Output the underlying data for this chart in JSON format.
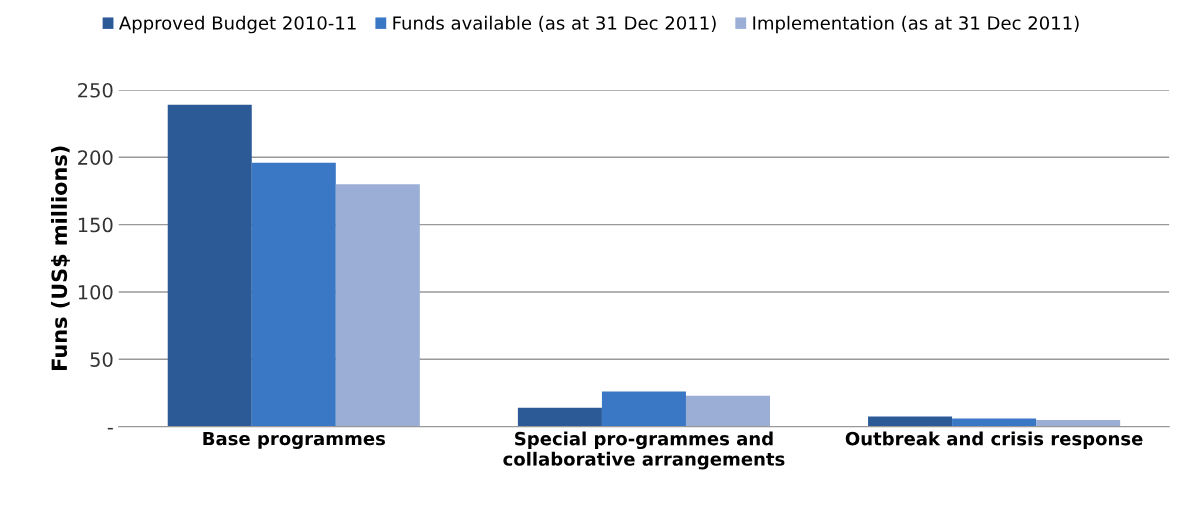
{
  "chart_data": {
    "type": "bar",
    "ylabel": "Funs (US$ millions)",
    "categories": [
      "Base programmes",
      "Special pro-grammes and\ncollaborative arrangements",
      "Outbreak and crisis response"
    ],
    "series": [
      {
        "name": "Approved Budget 2010-11",
        "color": "#2c5a97",
        "values": [
          239,
          14,
          7.5
        ]
      },
      {
        "name": "Funds available (as at 31 Dec 2011)",
        "color": "#3a78c6",
        "values": [
          196,
          26,
          6
        ]
      },
      {
        "name": "Implementation (as at 31 Dec 2011)",
        "color": "#9aaed6",
        "values": [
          180,
          23,
          5
        ]
      }
    ],
    "ylim": [
      0,
      250
    ],
    "yticks": [
      {
        "value": 0,
        "label": "-"
      },
      50,
      100,
      150,
      200,
      250
    ],
    "grid": "y",
    "legend": "top"
  }
}
